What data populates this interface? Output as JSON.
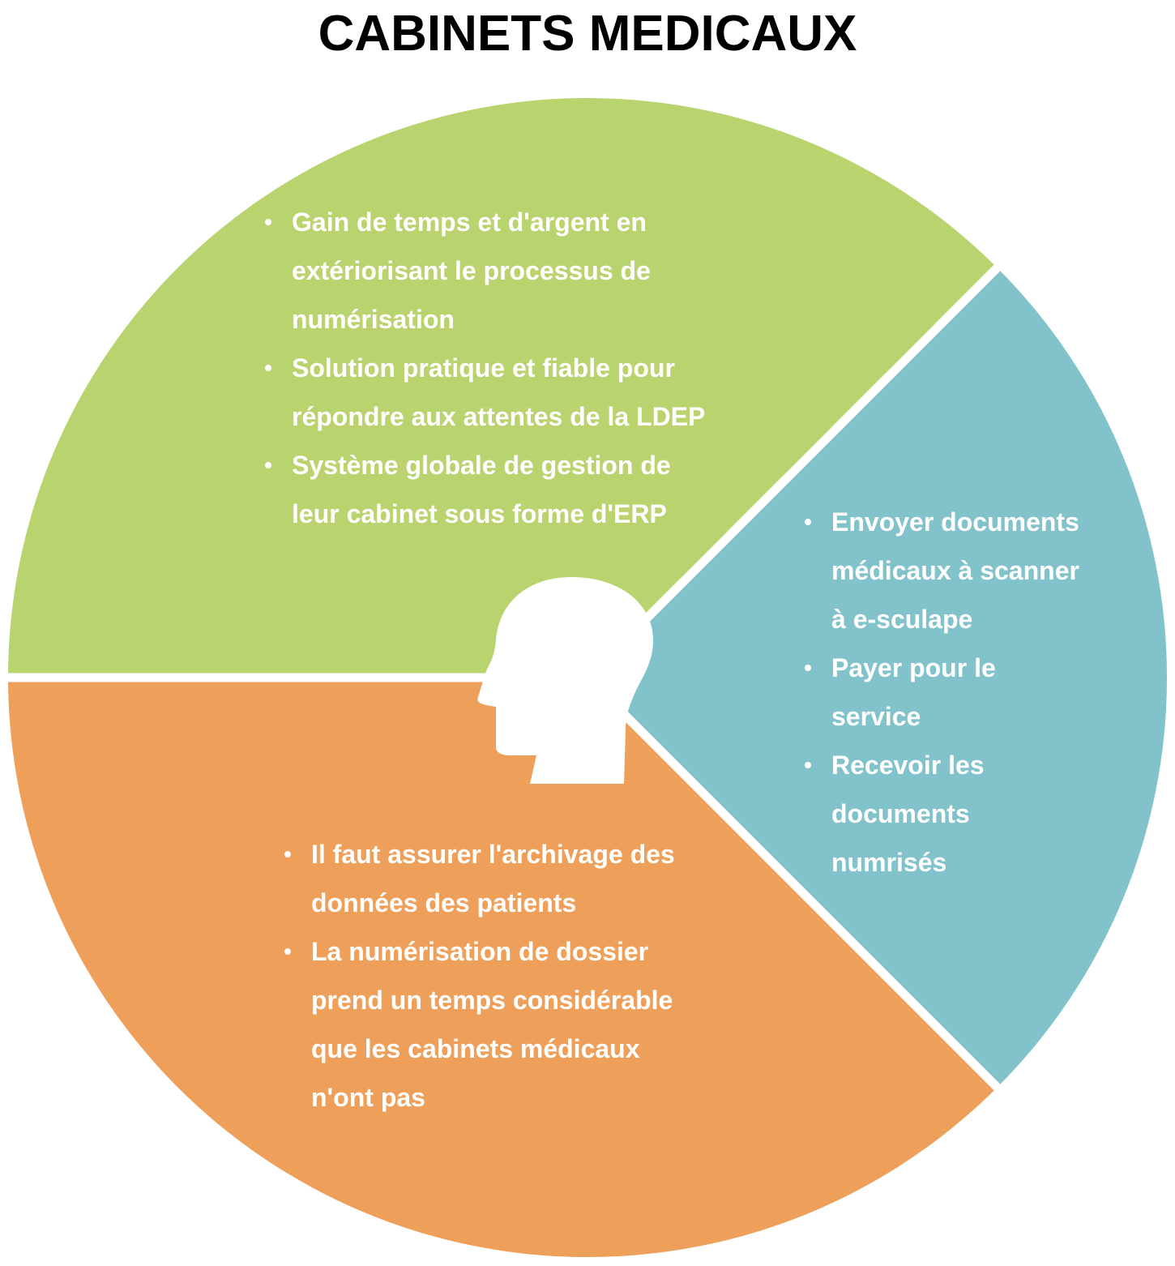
{
  "title": "CABINETS MEDICAUX",
  "colors": {
    "green": "#b9d36f",
    "teal": "#82c2ca",
    "orange": "#eea05a",
    "separator": "#ffffff",
    "text": "#ffffff"
  },
  "center_icon": "human-head-icon",
  "segments": {
    "top": {
      "color": "#b9d36f",
      "items": [
        [
          "Gain de temps et d'argent en",
          "extériorisant le processus de",
          "numérisation"
        ],
        [
          "Solution pratique et fiable pour",
          "répondre aux attentes de la LDEP"
        ],
        [
          "Système globale de gestion de",
          "leur cabinet sous forme d'ERP"
        ]
      ]
    },
    "right": {
      "color": "#82c2ca",
      "items": [
        [
          "Envoyer documents",
          "médicaux à scanner",
          "à e-sculape"
        ],
        [
          "Payer pour le",
          "service"
        ],
        [
          "Recevoir les",
          "documents",
          "numrisés"
        ]
      ]
    },
    "bottom": {
      "color": "#eea05a",
      "items": [
        [
          "Il faut assurer l'archivage des",
          "données des patients"
        ],
        [
          "La numérisation de dossier",
          "prend un temps considérable",
          "que les cabinets médicaux",
          "n'ont pas"
        ]
      ]
    }
  }
}
